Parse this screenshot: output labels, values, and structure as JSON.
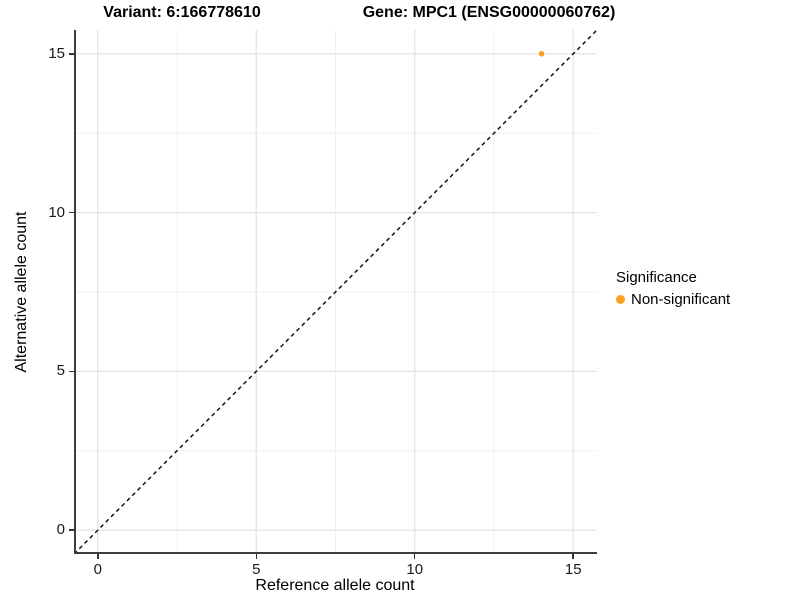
{
  "titles": {
    "left": "Variant: 6:166778610",
    "right": "Gene: MPC1 (ENSG00000060762)"
  },
  "chart_data": {
    "type": "scatter",
    "title_left": "Variant: 6:166778610",
    "title_right": "Gene: MPC1 (ENSG00000060762)",
    "xlabel": "Reference allele count",
    "ylabel": "Alternative allele count",
    "xlim": [
      -0.75,
      15.75
    ],
    "ylim": [
      -0.75,
      15.75
    ],
    "xticks": [
      0,
      5,
      10,
      15
    ],
    "yticks": [
      0,
      5,
      10,
      15
    ],
    "x_minor_ticks": [
      2.5,
      7.5,
      12.5
    ],
    "y_minor_ticks": [
      2.5,
      7.5,
      12.5
    ],
    "grid": true,
    "points": [
      {
        "x": 14,
        "y": 15,
        "series": "Non-significant",
        "color": "#F9A01E"
      }
    ],
    "reference_line": {
      "kind": "identity",
      "style": "dashed",
      "color": "#141414"
    },
    "legend": {
      "title": "Significance",
      "position": "right",
      "entries": [
        {
          "label": "Non-significant",
          "color": "#F9A01E"
        }
      ]
    }
  },
  "colors": {
    "background": "#FFFFFF",
    "grid_major": "#E4E4E4",
    "grid_minor": "#F0F0F0",
    "axis_line": "#3C3C3C",
    "tick_mark": "#333333",
    "text": "#1A1A1A"
  }
}
